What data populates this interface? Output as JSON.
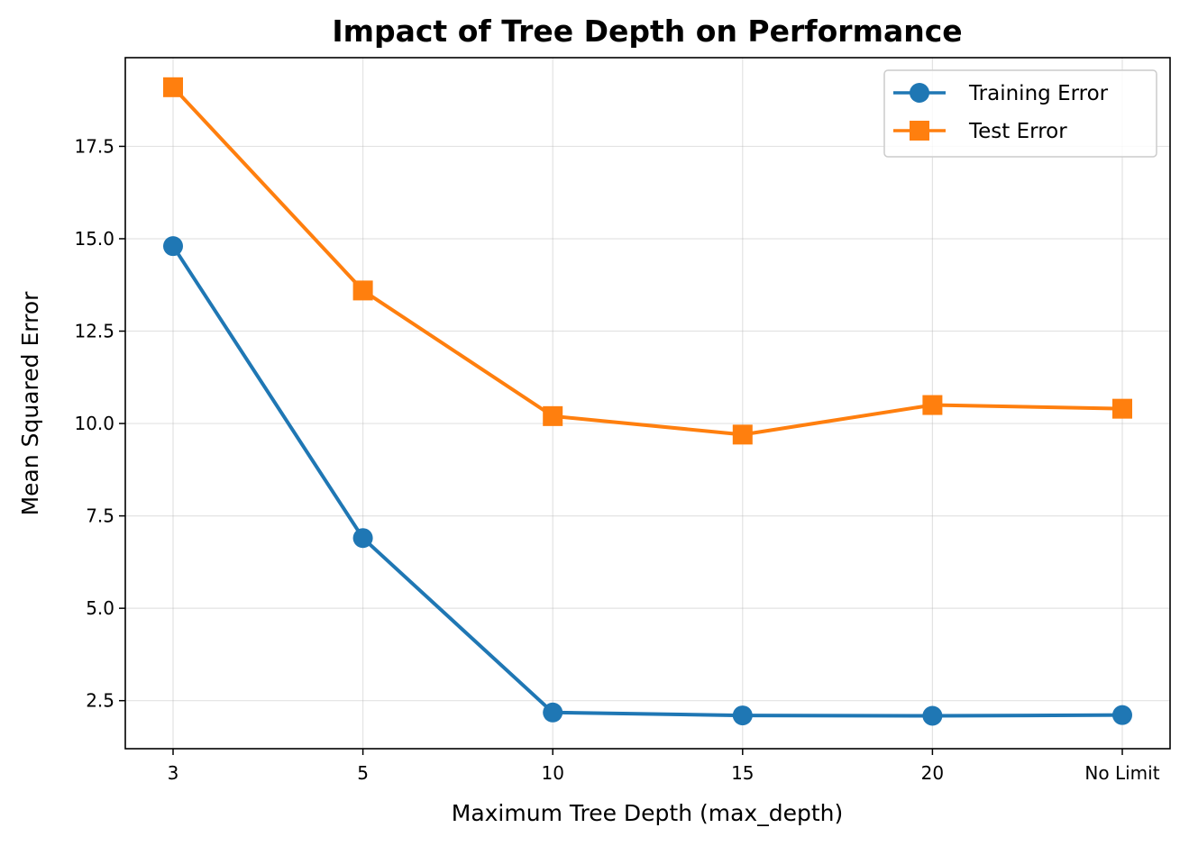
{
  "chart_data": {
    "type": "line",
    "title": "Impact of Tree Depth on Performance",
    "xlabel": "Maximum Tree Depth (max_depth)",
    "ylabel": "Mean Squared Error",
    "categories": [
      "3",
      "5",
      "10",
      "15",
      "20",
      "No Limit"
    ],
    "ylim": [
      1.2,
      19.9
    ],
    "yticks": [
      2.5,
      5.0,
      7.5,
      10.0,
      12.5,
      15.0,
      17.5
    ],
    "ytick_labels": [
      "2.5",
      "5.0",
      "7.5",
      "10.0",
      "12.5",
      "15.0",
      "17.5"
    ],
    "grid": true,
    "legend_position": "top-right",
    "series": [
      {
        "name": "Training Error",
        "color": "#1f77b4",
        "marker": "circle",
        "values": [
          14.8,
          6.9,
          2.18,
          2.1,
          2.09,
          2.11
        ]
      },
      {
        "name": "Test Error",
        "color": "#ff7f0e",
        "marker": "square",
        "values": [
          19.1,
          13.6,
          10.2,
          9.7,
          10.5,
          10.4
        ]
      }
    ]
  }
}
